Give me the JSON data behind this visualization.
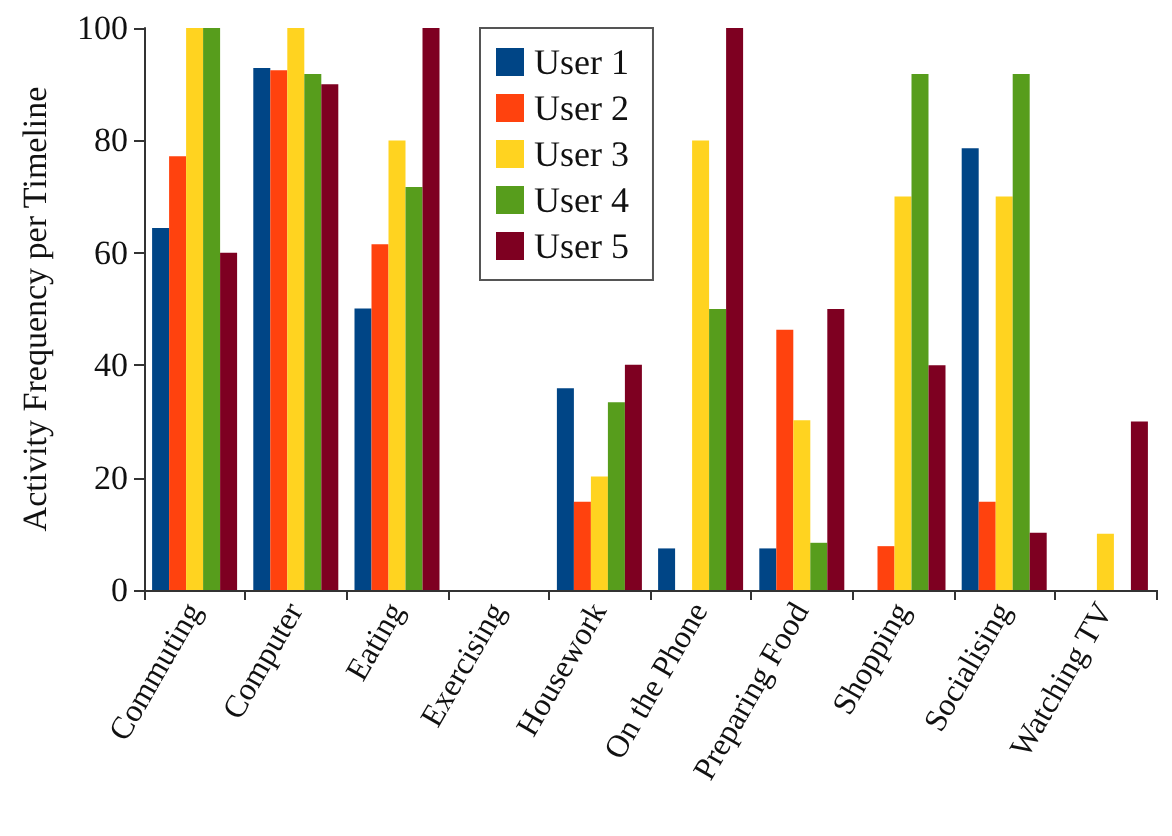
{
  "chart_data": {
    "type": "bar",
    "ylabel": "Activity Frequency per Timeline",
    "categories": [
      "Commuting",
      "Computer",
      "Eating",
      "Exercising",
      "Housework",
      "On the Phone",
      "Preparing Food",
      "Shopping",
      "Socialising",
      "Watching TV"
    ],
    "series": [
      {
        "name": "User 1",
        "color": "#004586",
        "values": [
          64.4,
          92.9,
          50.1,
          0,
          35.9,
          7.4,
          7.4,
          0,
          78.6,
          0
        ]
      },
      {
        "name": "User 2",
        "color": "#ff420e",
        "values": [
          77.2,
          92.5,
          61.5,
          0,
          15.7,
          0,
          46.3,
          7.8,
          15.7,
          0
        ]
      },
      {
        "name": "User 3",
        "color": "#ffd320",
        "values": [
          100,
          100,
          80,
          0,
          20.2,
          80,
          30.2,
          70,
          70,
          10
        ]
      },
      {
        "name": "User 4",
        "color": "#579d1c",
        "values": [
          100,
          91.8,
          71.7,
          0,
          33.4,
          50,
          8.4,
          91.8,
          91.8,
          0
        ]
      },
      {
        "name": "User 5",
        "color": "#7e0021",
        "values": [
          60,
          90,
          100,
          0,
          40.1,
          100,
          50,
          40,
          10.2,
          30
        ]
      }
    ],
    "ylim": [
      0,
      100
    ],
    "yticks": [
      0,
      20,
      40,
      60,
      80,
      100
    ],
    "grid": false,
    "legend": "top"
  }
}
